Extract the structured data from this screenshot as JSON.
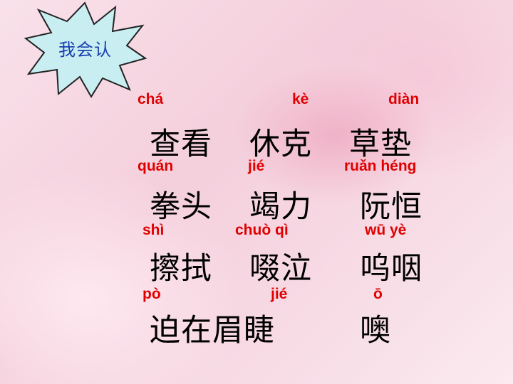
{
  "badge": {
    "label": "我会认"
  },
  "rows": [
    {
      "pinyin": [
        "chá",
        "kè",
        "diàn"
      ],
      "words": [
        "查看",
        "休克",
        "草垫"
      ]
    },
    {
      "pinyin": [
        "quán",
        "jié",
        "ruǎn héng"
      ],
      "words": [
        "拳头",
        "竭力",
        "阮恒"
      ]
    },
    {
      "pinyin": [
        "shì",
        "chuò  qì",
        "wū  yè"
      ],
      "words": [
        "擦拭",
        "啜泣",
        "呜咽"
      ]
    },
    {
      "pinyin": [
        "pò",
        "jié",
        "ō"
      ],
      "words": [
        "迫在眉睫",
        "噢"
      ]
    }
  ],
  "colors": {
    "pinyin": "#e00000",
    "badge_fill": "#c8eef2",
    "badge_text": "#1a3fb0"
  }
}
